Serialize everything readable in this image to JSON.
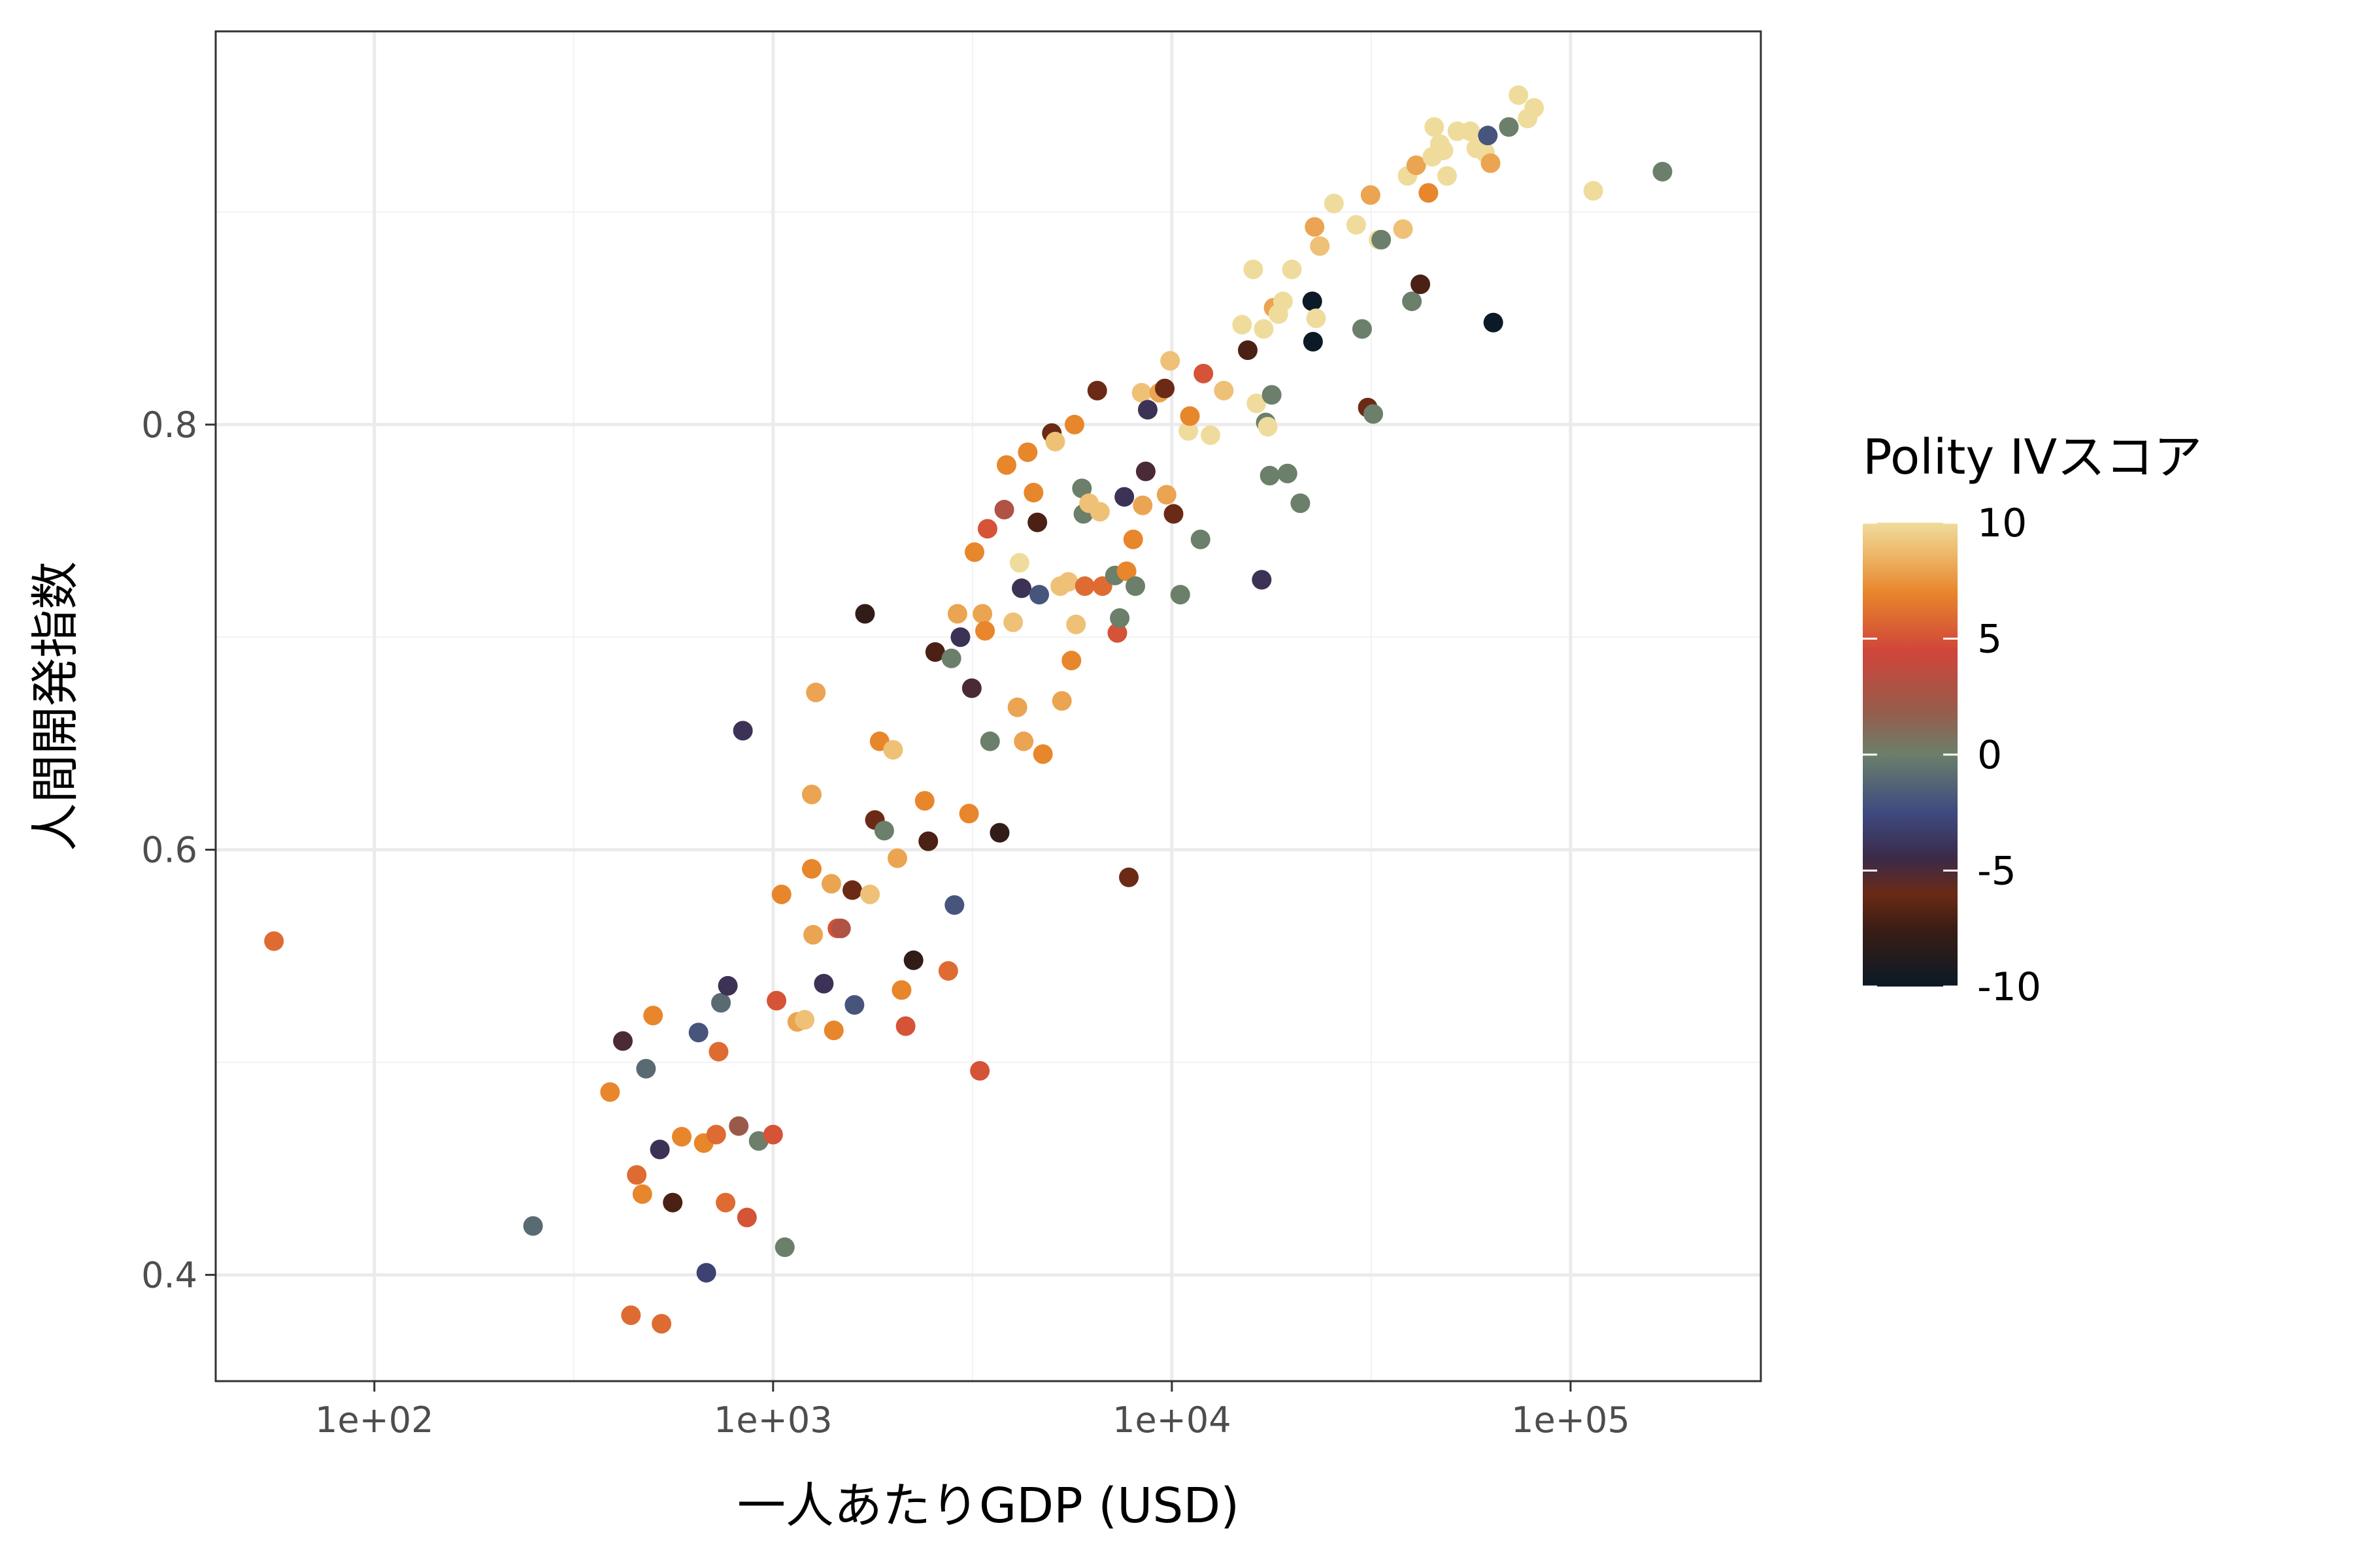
{
  "chart_data": {
    "type": "scatter",
    "title": "",
    "xlabel": "一人あたりGDP (USD)",
    "ylabel": "人間開発指数",
    "x_scale": "log10",
    "xlim": [
      40,
      300000
    ],
    "ylim": [
      0.35,
      0.985
    ],
    "x_ticks": [
      100,
      1000,
      10000,
      100000
    ],
    "x_tick_labels": [
      "1e+02",
      "1e+03",
      "1e+04",
      "1e+05"
    ],
    "y_ticks": [
      0.4,
      0.6,
      0.8
    ],
    "y_tick_labels": [
      "0.4",
      "0.6",
      "0.8"
    ],
    "grid": true,
    "legend": {
      "title": "Polity IVスコア",
      "position": "right",
      "type": "colorbar",
      "range": [
        -10,
        10
      ],
      "ticks": [
        10,
        5,
        0,
        -5,
        -10
      ],
      "tick_labels": [
        "10",
        "5",
        "0",
        "-5",
        "-10"
      ],
      "color_stops": [
        {
          "value": -10,
          "color": "#0b1a26"
        },
        {
          "value": -7.5,
          "color": "#3a1d14"
        },
        {
          "value": -6,
          "color": "#6b2a15"
        },
        {
          "value": -4.5,
          "color": "#3b2a48"
        },
        {
          "value": -2.5,
          "color": "#3e4a80"
        },
        {
          "value": 0,
          "color": "#6b7f6a"
        },
        {
          "value": 2,
          "color": "#9a5a4a"
        },
        {
          "value": 4.5,
          "color": "#d0463a"
        },
        {
          "value": 7,
          "color": "#e8862c"
        },
        {
          "value": 8.5,
          "color": "#edb365"
        },
        {
          "value": 10,
          "color": "#efdc9c"
        }
      ]
    },
    "points": [
      {
        "x": 56,
        "y": 0.557,
        "c": 6
      },
      {
        "x": 250,
        "y": 0.423,
        "c": -1
      },
      {
        "x": 390,
        "y": 0.486,
        "c": 7
      },
      {
        "x": 420,
        "y": 0.51,
        "c": -5
      },
      {
        "x": 440,
        "y": 0.381,
        "c": 6
      },
      {
        "x": 455,
        "y": 0.447,
        "c": 6
      },
      {
        "x": 470,
        "y": 0.438,
        "c": 7
      },
      {
        "x": 480,
        "y": 0.497,
        "c": -1
      },
      {
        "x": 500,
        "y": 0.522,
        "c": 7
      },
      {
        "x": 520,
        "y": 0.459,
        "c": -4
      },
      {
        "x": 525,
        "y": 0.377,
        "c": 6
      },
      {
        "x": 560,
        "y": 0.434,
        "c": -7
      },
      {
        "x": 590,
        "y": 0.465,
        "c": 7
      },
      {
        "x": 650,
        "y": 0.514,
        "c": -2
      },
      {
        "x": 670,
        "y": 0.462,
        "c": 7
      },
      {
        "x": 680,
        "y": 0.401,
        "c": -3
      },
      {
        "x": 720,
        "y": 0.466,
        "c": 6
      },
      {
        "x": 730,
        "y": 0.505,
        "c": 6
      },
      {
        "x": 740,
        "y": 0.528,
        "c": -1
      },
      {
        "x": 760,
        "y": 0.434,
        "c": 6
      },
      {
        "x": 770,
        "y": 0.536,
        "c": -4
      },
      {
        "x": 820,
        "y": 0.47,
        "c": 2
      },
      {
        "x": 840,
        "y": 0.656,
        "c": -4
      },
      {
        "x": 860,
        "y": 0.427,
        "c": 5
      },
      {
        "x": 920,
        "y": 0.463,
        "c": 0
      },
      {
        "x": 1000,
        "y": 0.466,
        "c": 5
      },
      {
        "x": 1020,
        "y": 0.529,
        "c": 5
      },
      {
        "x": 1050,
        "y": 0.579,
        "c": 7
      },
      {
        "x": 1070,
        "y": 0.413,
        "c": 0
      },
      {
        "x": 1150,
        "y": 0.519,
        "c": 8
      },
      {
        "x": 1200,
        "y": 0.52,
        "c": 9
      },
      {
        "x": 1250,
        "y": 0.626,
        "c": 8
      },
      {
        "x": 1250,
        "y": 0.591,
        "c": 7
      },
      {
        "x": 1260,
        "y": 0.56,
        "c": 8
      },
      {
        "x": 1280,
        "y": 0.674,
        "c": 8
      },
      {
        "x": 1340,
        "y": 0.537,
        "c": -4
      },
      {
        "x": 1400,
        "y": 0.584,
        "c": 8
      },
      {
        "x": 1420,
        "y": 0.515,
        "c": 7
      },
      {
        "x": 1450,
        "y": 0.563,
        "c": 5
      },
      {
        "x": 1480,
        "y": 0.563,
        "c": 3
      },
      {
        "x": 1580,
        "y": 0.581,
        "c": -6
      },
      {
        "x": 1600,
        "y": 0.527,
        "c": -2
      },
      {
        "x": 1700,
        "y": 0.711,
        "c": -8
      },
      {
        "x": 1750,
        "y": 0.579,
        "c": 9
      },
      {
        "x": 1800,
        "y": 0.614,
        "c": -6
      },
      {
        "x": 1850,
        "y": 0.651,
        "c": 7
      },
      {
        "x": 1900,
        "y": 0.609,
        "c": 0
      },
      {
        "x": 2000,
        "y": 0.647,
        "c": 9
      },
      {
        "x": 2050,
        "y": 0.596,
        "c": 8
      },
      {
        "x": 2100,
        "y": 0.534,
        "c": 7
      },
      {
        "x": 2150,
        "y": 0.517,
        "c": 5
      },
      {
        "x": 2250,
        "y": 0.548,
        "c": -8
      },
      {
        "x": 2400,
        "y": 0.623,
        "c": 7
      },
      {
        "x": 2450,
        "y": 0.604,
        "c": -7
      },
      {
        "x": 2550,
        "y": 0.693,
        "c": -7
      },
      {
        "x": 2750,
        "y": 0.543,
        "c": 6
      },
      {
        "x": 2800,
        "y": 0.69,
        "c": 0
      },
      {
        "x": 2850,
        "y": 0.574,
        "c": -2
      },
      {
        "x": 2900,
        "y": 0.711,
        "c": 8
      },
      {
        "x": 2950,
        "y": 0.7,
        "c": -4
      },
      {
        "x": 3100,
        "y": 0.617,
        "c": 7
      },
      {
        "x": 3150,
        "y": 0.676,
        "c": -5
      },
      {
        "x": 3200,
        "y": 0.74,
        "c": 7
      },
      {
        "x": 3300,
        "y": 0.496,
        "c": 5
      },
      {
        "x": 3350,
        "y": 0.711,
        "c": 8
      },
      {
        "x": 3400,
        "y": 0.703,
        "c": 7
      },
      {
        "x": 3450,
        "y": 0.751,
        "c": 5
      },
      {
        "x": 3500,
        "y": 0.651,
        "c": 0
      },
      {
        "x": 3700,
        "y": 0.608,
        "c": -8
      },
      {
        "x": 3800,
        "y": 0.76,
        "c": 3
      },
      {
        "x": 3850,
        "y": 0.781,
        "c": 7
      },
      {
        "x": 4000,
        "y": 0.707,
        "c": 9
      },
      {
        "x": 4100,
        "y": 0.667,
        "c": 8
      },
      {
        "x": 4150,
        "y": 0.735,
        "c": 10
      },
      {
        "x": 4200,
        "y": 0.723,
        "c": -4
      },
      {
        "x": 4250,
        "y": 0.651,
        "c": 8
      },
      {
        "x": 4350,
        "y": 0.787,
        "c": 7
      },
      {
        "x": 4500,
        "y": 0.768,
        "c": 7
      },
      {
        "x": 4600,
        "y": 0.754,
        "c": -7
      },
      {
        "x": 4650,
        "y": 0.72,
        "c": -2
      },
      {
        "x": 4750,
        "y": 0.645,
        "c": 7
      },
      {
        "x": 5000,
        "y": 0.796,
        "c": -6
      },
      {
        "x": 5100,
        "y": 0.792,
        "c": 9
      },
      {
        "x": 5250,
        "y": 0.724,
        "c": 9
      },
      {
        "x": 5300,
        "y": 0.67,
        "c": 8
      },
      {
        "x": 5500,
        "y": 0.726,
        "c": 9
      },
      {
        "x": 5600,
        "y": 0.689,
        "c": 7
      },
      {
        "x": 5700,
        "y": 0.8,
        "c": 7
      },
      {
        "x": 5750,
        "y": 0.706,
        "c": 9
      },
      {
        "x": 5950,
        "y": 0.77,
        "c": 0
      },
      {
        "x": 6000,
        "y": 0.758,
        "c": 0
      },
      {
        "x": 6050,
        "y": 0.724,
        "c": 6
      },
      {
        "x": 6200,
        "y": 0.763,
        "c": 9
      },
      {
        "x": 6500,
        "y": 0.816,
        "c": -6
      },
      {
        "x": 6600,
        "y": 0.759,
        "c": 9
      },
      {
        "x": 6700,
        "y": 0.724,
        "c": 6
      },
      {
        "x": 7200,
        "y": 0.729,
        "c": 0
      },
      {
        "x": 7300,
        "y": 0.702,
        "c": 5
      },
      {
        "x": 7400,
        "y": 0.709,
        "c": 0
      },
      {
        "x": 7600,
        "y": 0.766,
        "c": -4
      },
      {
        "x": 7700,
        "y": 0.731,
        "c": 7
      },
      {
        "x": 7800,
        "y": 0.587,
        "c": -6
      },
      {
        "x": 8000,
        "y": 0.746,
        "c": 7
      },
      {
        "x": 8100,
        "y": 0.724,
        "c": 0
      },
      {
        "x": 8400,
        "y": 0.815,
        "c": 9
      },
      {
        "x": 8450,
        "y": 0.762,
        "c": 8
      },
      {
        "x": 8600,
        "y": 0.778,
        "c": -5
      },
      {
        "x": 8700,
        "y": 0.807,
        "c": -4
      },
      {
        "x": 9300,
        "y": 0.815,
        "c": 8
      },
      {
        "x": 9600,
        "y": 0.817,
        "c": -6
      },
      {
        "x": 9700,
        "y": 0.767,
        "c": 8
      },
      {
        "x": 9900,
        "y": 0.83,
        "c": 9
      },
      {
        "x": 10100,
        "y": 0.758,
        "c": -6
      },
      {
        "x": 10500,
        "y": 0.72,
        "c": 0
      },
      {
        "x": 11000,
        "y": 0.797,
        "c": 10
      },
      {
        "x": 11100,
        "y": 0.804,
        "c": 7
      },
      {
        "x": 11800,
        "y": 0.746,
        "c": 0
      },
      {
        "x": 12000,
        "y": 0.824,
        "c": 5
      },
      {
        "x": 12500,
        "y": 0.795,
        "c": 10
      },
      {
        "x": 13500,
        "y": 0.816,
        "c": 9
      },
      {
        "x": 15000,
        "y": 0.847,
        "c": 10
      },
      {
        "x": 15500,
        "y": 0.835,
        "c": -7
      },
      {
        "x": 16000,
        "y": 0.873,
        "c": 10
      },
      {
        "x": 16300,
        "y": 0.81,
        "c": 10
      },
      {
        "x": 16800,
        "y": 0.727,
        "c": -4
      },
      {
        "x": 17000,
        "y": 0.845,
        "c": 10
      },
      {
        "x": 17200,
        "y": 0.801,
        "c": 0
      },
      {
        "x": 17400,
        "y": 0.799,
        "c": 10
      },
      {
        "x": 17600,
        "y": 0.776,
        "c": 0
      },
      {
        "x": 17800,
        "y": 0.814,
        "c": 0
      },
      {
        "x": 18000,
        "y": 0.855,
        "c": 8
      },
      {
        "x": 18500,
        "y": 0.852,
        "c": 10
      },
      {
        "x": 19000,
        "y": 0.858,
        "c": 10
      },
      {
        "x": 19500,
        "y": 0.777,
        "c": 0
      },
      {
        "x": 20000,
        "y": 0.873,
        "c": 10
      },
      {
        "x": 21000,
        "y": 0.763,
        "c": 0
      },
      {
        "x": 22500,
        "y": 0.858,
        "c": -10
      },
      {
        "x": 22600,
        "y": 0.839,
        "c": -10
      },
      {
        "x": 22800,
        "y": 0.893,
        "c": 8
      },
      {
        "x": 23000,
        "y": 0.85,
        "c": 10
      },
      {
        "x": 23500,
        "y": 0.884,
        "c": 9
      },
      {
        "x": 25500,
        "y": 0.904,
        "c": 10
      },
      {
        "x": 29000,
        "y": 0.894,
        "c": 10
      },
      {
        "x": 30000,
        "y": 0.845,
        "c": 0
      },
      {
        "x": 31000,
        "y": 0.808,
        "c": -6
      },
      {
        "x": 31500,
        "y": 0.908,
        "c": 8
      },
      {
        "x": 32000,
        "y": 0.805,
        "c": 0
      },
      {
        "x": 33000,
        "y": 0.887,
        "c": 10
      },
      {
        "x": 33500,
        "y": 0.887,
        "c": 0
      },
      {
        "x": 38000,
        "y": 0.892,
        "c": 9
      },
      {
        "x": 39000,
        "y": 0.917,
        "c": 10
      },
      {
        "x": 40000,
        "y": 0.858,
        "c": 0
      },
      {
        "x": 41000,
        "y": 0.922,
        "c": 8
      },
      {
        "x": 42000,
        "y": 0.866,
        "c": -7
      },
      {
        "x": 44000,
        "y": 0.909,
        "c": 7
      },
      {
        "x": 45000,
        "y": 0.926,
        "c": 10
      },
      {
        "x": 45500,
        "y": 0.94,
        "c": 10
      },
      {
        "x": 47000,
        "y": 0.932,
        "c": 10
      },
      {
        "x": 48000,
        "y": 0.929,
        "c": 10
      },
      {
        "x": 49000,
        "y": 0.917,
        "c": 10
      },
      {
        "x": 52000,
        "y": 0.938,
        "c": 10
      },
      {
        "x": 56000,
        "y": 0.938,
        "c": 10
      },
      {
        "x": 58000,
        "y": 0.93,
        "c": 10
      },
      {
        "x": 61000,
        "y": 0.928,
        "c": 10
      },
      {
        "x": 62000,
        "y": 0.936,
        "c": -2
      },
      {
        "x": 63000,
        "y": 0.923,
        "c": 8
      },
      {
        "x": 64000,
        "y": 0.848,
        "c": -10
      },
      {
        "x": 70000,
        "y": 0.94,
        "c": 0
      },
      {
        "x": 74000,
        "y": 0.955,
        "c": 10
      },
      {
        "x": 78000,
        "y": 0.944,
        "c": 10
      },
      {
        "x": 81000,
        "y": 0.949,
        "c": 10
      },
      {
        "x": 114000,
        "y": 0.91,
        "c": 10
      },
      {
        "x": 170000,
        "y": 0.919,
        "c": 0
      }
    ]
  }
}
